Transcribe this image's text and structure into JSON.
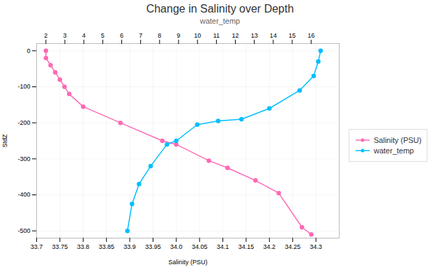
{
  "chart_data": {
    "type": "line",
    "title": "Change in Salinity over Depth",
    "subtitle": "water_temp",
    "xlabel": "Salinity (PSU)",
    "ylabel": "StdZ",
    "xlim": [
      33.7,
      34.35
    ],
    "ylim": [
      -520,
      20
    ],
    "xticks": [
      33.7,
      33.75,
      33.8,
      33.85,
      33.9,
      33.95,
      {
        "value": 34.0,
        "label": "34.0"
      },
      34.05,
      34.1,
      34.15,
      34.2,
      34.25,
      34.3
    ],
    "yticks": [
      0,
      -100,
      -200,
      -300,
      -400,
      -500
    ],
    "x2lim": [
      1.5084745762711864,
      17.483050847457626
    ],
    "x2ticks": [
      2,
      3,
      4,
      5,
      6,
      7,
      8,
      9,
      10,
      11,
      12,
      13,
      14,
      15,
      16
    ],
    "grid": true,
    "legend": "right",
    "series": [
      {
        "name": "Salinity (PSU)",
        "color": "#ff69b4",
        "marker": "circle",
        "x": [
          33.72,
          33.72,
          33.73,
          33.74,
          33.75,
          33.76,
          33.77,
          33.8,
          33.88,
          33.97,
          34.0,
          34.07,
          34.11,
          34.17,
          34.22,
          34.27,
          34.29
        ],
        "values": [
          0,
          -20,
          -40,
          -60,
          -80,
          -100,
          -120,
          -155,
          -200,
          -250,
          -260,
          -305,
          -325,
          -360,
          -395,
          -490,
          -510
        ]
      },
      {
        "name": "water_temp",
        "color": "#00bfff",
        "marker": "circle",
        "x": [
          33.895,
          33.905,
          33.92,
          33.945,
          33.98,
          34.0,
          34.045,
          34.09,
          34.14,
          34.2,
          34.265,
          34.295,
          34.305,
          34.31
        ],
        "values": [
          -500,
          -425,
          -370,
          -320,
          -260,
          -250,
          -205,
          -195,
          -190,
          -160,
          -110,
          -70,
          -30,
          0
        ]
      }
    ]
  }
}
